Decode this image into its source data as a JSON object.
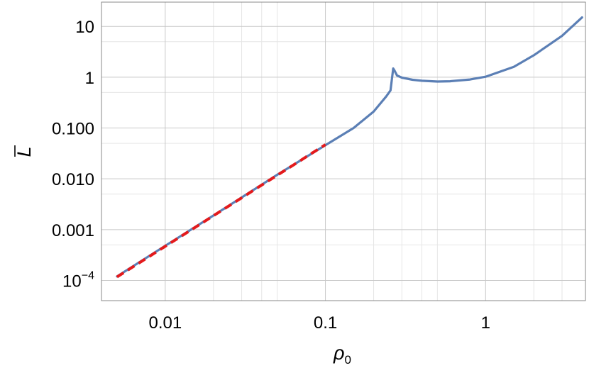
{
  "chart_data": {
    "type": "line",
    "xlabel": "ρ",
    "xlabel_sub": "0",
    "ylabel": "L",
    "x_scale": "log",
    "y_scale": "log",
    "xlim": [
      0.004,
      4.2
    ],
    "ylim": [
      4e-05,
      30
    ],
    "grid": true,
    "x_ticks": [
      {
        "value": 0.01,
        "label": "0.01"
      },
      {
        "value": 0.1,
        "label": "0.1"
      },
      {
        "value": 1,
        "label": "1"
      }
    ],
    "x_minor_grid": [
      0.02,
      0.03,
      0.04,
      0.05,
      0.2,
      0.3,
      0.4,
      0.5,
      2,
      3
    ],
    "y_ticks": [
      {
        "value": 0.0001,
        "label": "10",
        "sup": "−4"
      },
      {
        "value": 0.001,
        "label": "0.001"
      },
      {
        "value": 0.01,
        "label": "0.010"
      },
      {
        "value": 0.1,
        "label": "0.100"
      },
      {
        "value": 1,
        "label": "1"
      },
      {
        "value": 10,
        "label": "10"
      }
    ],
    "y_minor_grid": [
      0.0005,
      0.005,
      0.05,
      0.5,
      5
    ],
    "series": [
      {
        "color": "#5b7fb5",
        "style": "solid",
        "x": [
          0.005,
          0.01,
          0.02,
          0.05,
          0.1,
          0.15,
          0.2,
          0.24,
          0.255,
          0.26,
          0.265,
          0.27,
          0.28,
          0.3,
          0.35,
          0.4,
          0.5,
          0.6,
          0.8,
          1.0,
          1.5,
          2.0,
          3.0,
          4.0
        ],
        "y": [
          0.00012,
          0.00048,
          0.0019,
          0.012,
          0.046,
          0.1,
          0.21,
          0.42,
          0.55,
          0.9,
          1.48,
          1.35,
          1.08,
          0.98,
          0.89,
          0.85,
          0.82,
          0.83,
          0.9,
          1.02,
          1.6,
          2.7,
          6.5,
          15
        ]
      },
      {
        "color": "#e41a1c",
        "style": "dashed",
        "x": [
          0.005,
          0.1
        ],
        "y": [
          0.000117,
          0.047
        ]
      }
    ]
  }
}
